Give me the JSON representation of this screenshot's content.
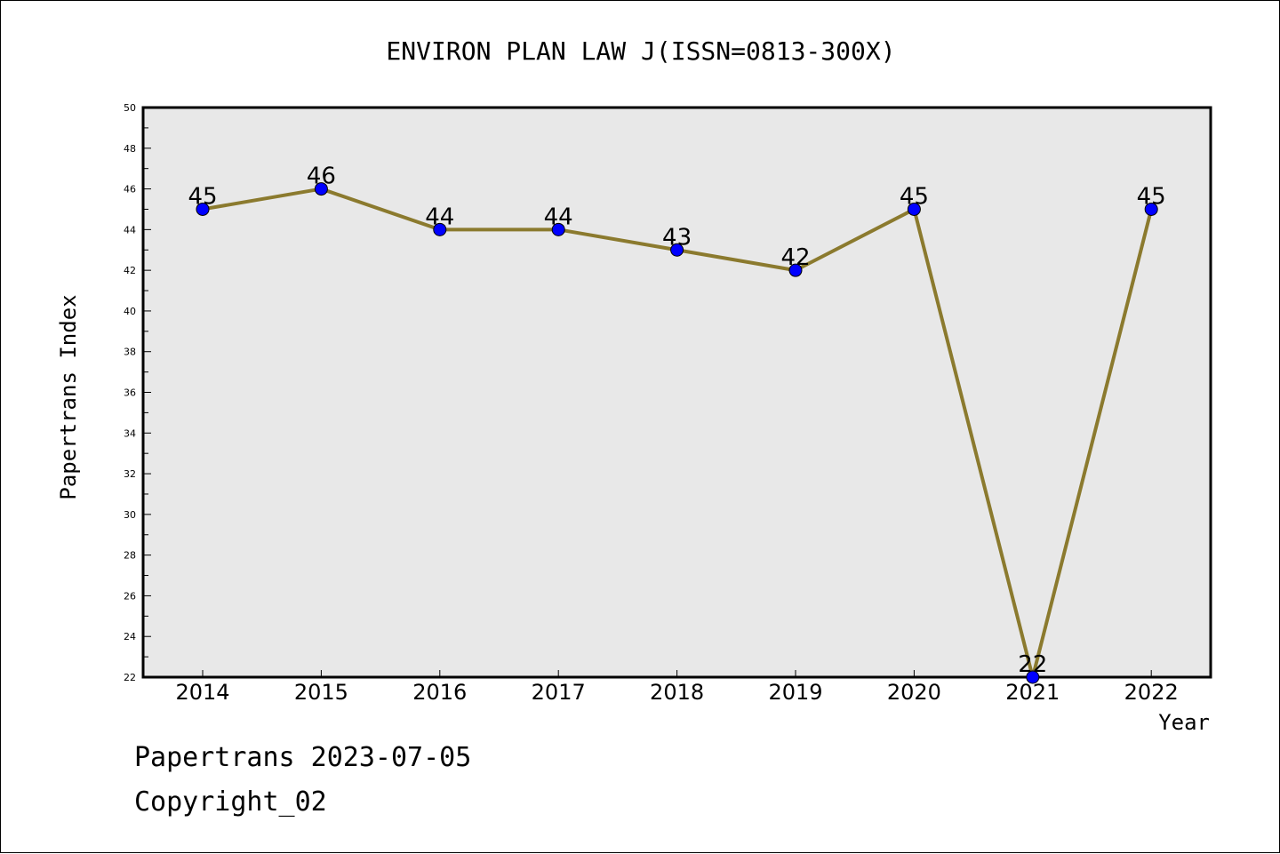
{
  "chart_data": {
    "type": "line",
    "title": "ENVIRON PLAN LAW J(ISSN=0813-300X)",
    "xlabel": "Year",
    "ylabel": "Papertrans Index",
    "categories": [
      "2014",
      "2015",
      "2016",
      "2017",
      "2018",
      "2019",
      "2020",
      "2021",
      "2022"
    ],
    "series": [
      {
        "values": [
          45,
          46,
          44,
          44,
          43,
          42,
          45,
          22,
          45
        ]
      }
    ],
    "ylim": [
      22,
      50
    ],
    "yticks": [
      22,
      24,
      26,
      28,
      30,
      32,
      34,
      36,
      38,
      40,
      42,
      44,
      46,
      48,
      50
    ],
    "grid": false,
    "colors": {
      "line": "#8b7a2e",
      "marker": "#0000ff",
      "plot_bg": "#e8e8e8"
    }
  },
  "footer": {
    "line1": "Papertrans 2023-07-05",
    "line2": "Copyright_02"
  }
}
